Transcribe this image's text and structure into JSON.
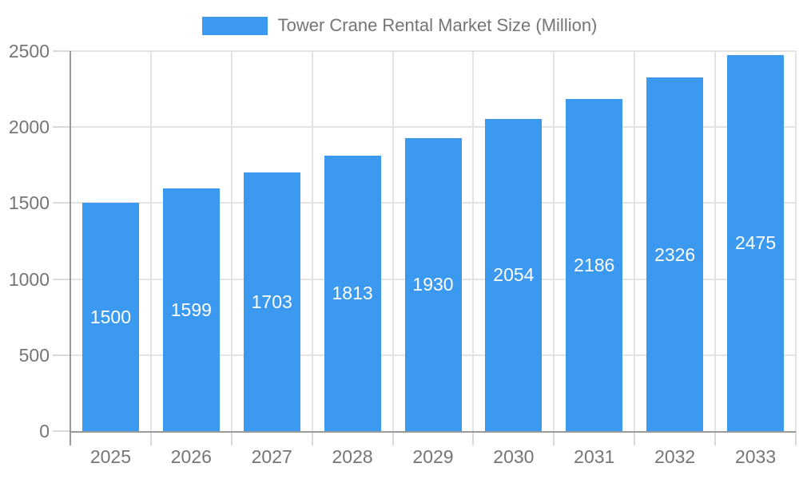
{
  "legend": {
    "position": "top-center",
    "items": [
      {
        "label": "Tower Crane Rental Market Size (Million)",
        "color": "#3B99F0"
      }
    ]
  },
  "chart_data": {
    "type": "bar",
    "title": "Tower Crane Rental Market Size (Million)",
    "series_name": "Tower Crane Rental Market Size (Million)",
    "categories": [
      "2025",
      "2026",
      "2027",
      "2028",
      "2029",
      "2030",
      "2031",
      "2032",
      "2033"
    ],
    "values": [
      1500,
      1599,
      1703,
      1813,
      1930,
      2054,
      2186,
      2326,
      2475
    ],
    "xlabel": "",
    "ylabel": "",
    "ylim": [
      0,
      2500
    ],
    "yticks": [
      0,
      500,
      1000,
      1500,
      2000,
      2500
    ],
    "grid": true,
    "legend_position": "top-center",
    "value_labels": "inside-middle-white",
    "colors": {
      "bar": "#3B99F0",
      "value_label": "#FFFFFF",
      "axis_line": "#999999",
      "gridline": "#E3E3E3",
      "tick_mark": "#D9D9D9",
      "tick_label": "#757575",
      "legend_text": "#757575",
      "background": "#FFFFFF"
    }
  }
}
